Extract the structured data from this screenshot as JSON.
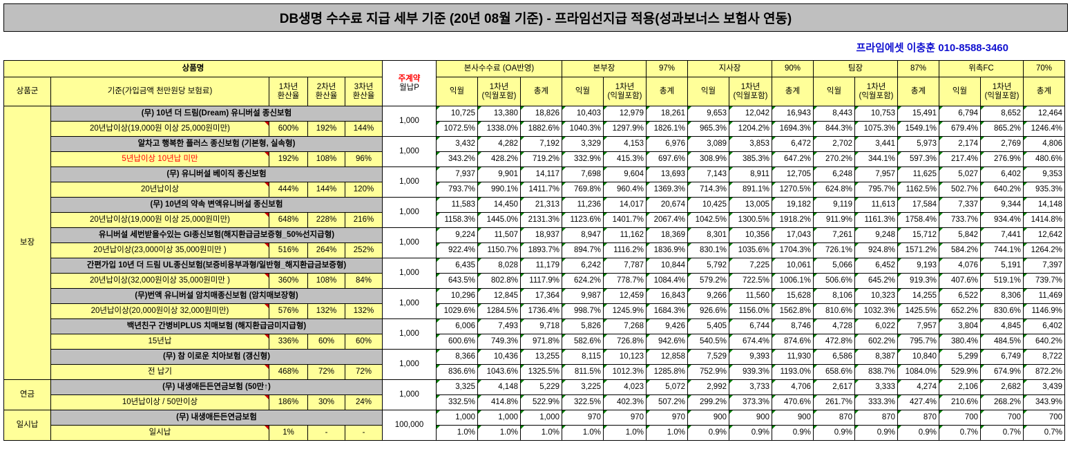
{
  "title": "DB생명 수수료 지급 세부 기준 (20년 08월 기준) - 프라임선지급 적용(성과보너스 보험사 연동)",
  "contact": "프라임에셋 이충훈 010-8588-3460",
  "header": {
    "product_name": "상품명",
    "weekly_contract": "주계약",
    "monthly_p": "월납P",
    "hq_fee": "본사수수료 (OA반영)",
    "headquarters": "본부장",
    "hq_pct": "97%",
    "branch": "지사장",
    "branch_pct": "90%",
    "team": "팀장",
    "team_pct": "87%",
    "fc": "위촉FC",
    "fc_pct": "70%",
    "group": "상품군",
    "criteria": "기준(가입금액 천만원당 보험료)",
    "rate1": "1차년\n환산율",
    "rate2": "2차년\n환산율",
    "rate3": "3차년\n환산율",
    "next_month": "익월",
    "year1": "1차년\n(익월포함)",
    "total": "총계"
  },
  "rows": [
    {
      "group": "보장",
      "name": "(무) 10년 더 드림(Dream) 유니버설 종신보험",
      "criteria": "20년납이상(19,000원 이상 25,000원미만)",
      "criteria_red": false,
      "r1": "600%",
      "r2": "192%",
      "r3": "144%",
      "premium": "1,000",
      "top": [
        "10,725",
        "13,380",
        "18,826",
        "10,403",
        "12,979",
        "18,261",
        "9,653",
        "12,042",
        "16,943",
        "8,443",
        "10,753",
        "15,491",
        "6,794",
        "8,652",
        "12,464"
      ],
      "bottom": [
        "1072.5%",
        "1338.0%",
        "1882.6%",
        "1040.3%",
        "1297.9%",
        "1826.1%",
        "965.3%",
        "1204.2%",
        "1694.3%",
        "844.3%",
        "1075.3%",
        "1549.1%",
        "679.4%",
        "865.2%",
        "1246.4%"
      ]
    },
    {
      "group": "보장",
      "name": "알차고 행복한 플러스 종신보험 (기본형, 실속형)",
      "criteria": "5년납이상 10년납 미만",
      "criteria_red": true,
      "r1": "192%",
      "r2": "108%",
      "r3": "96%",
      "premium": "1,000",
      "top": [
        "3,432",
        "4,282",
        "7,192",
        "3,329",
        "4,153",
        "6,976",
        "3,089",
        "3,853",
        "6,472",
        "2,702",
        "3,441",
        "5,973",
        "2,174",
        "2,769",
        "4,806"
      ],
      "bottom": [
        "343.2%",
        "428.2%",
        "719.2%",
        "332.9%",
        "415.3%",
        "697.6%",
        "308.9%",
        "385.3%",
        "647.2%",
        "270.2%",
        "344.1%",
        "597.3%",
        "217.4%",
        "276.9%",
        "480.6%"
      ]
    },
    {
      "group": "보장",
      "name": "(무) 유니버설 베이직 종신보험",
      "criteria": "20년납이상",
      "criteria_red": false,
      "r1": "444%",
      "r2": "144%",
      "r3": "120%",
      "premium": "1,000",
      "top": [
        "7,937",
        "9,901",
        "14,117",
        "7,698",
        "9,604",
        "13,693",
        "7,143",
        "8,911",
        "12,705",
        "6,248",
        "7,957",
        "11,625",
        "5,027",
        "6,402",
        "9,353"
      ],
      "bottom": [
        "793.7%",
        "990.1%",
        "1411.7%",
        "769.8%",
        "960.4%",
        "1369.3%",
        "714.3%",
        "891.1%",
        "1270.5%",
        "624.8%",
        "795.7%",
        "1162.5%",
        "502.7%",
        "640.2%",
        "935.3%"
      ]
    },
    {
      "group": "보장",
      "name": "(무) 10년의 약속 변액유니버설 종신보험",
      "criteria": "20년납이상(19,000원 이상 25,000원미만)",
      "criteria_red": false,
      "r1": "648%",
      "r2": "228%",
      "r3": "216%",
      "premium": "1,000",
      "top": [
        "11,583",
        "14,450",
        "21,313",
        "11,236",
        "14,017",
        "20,674",
        "10,425",
        "13,005",
        "19,182",
        "9,119",
        "11,613",
        "17,584",
        "7,337",
        "9,344",
        "14,148"
      ],
      "bottom": [
        "1158.3%",
        "1445.0%",
        "2131.3%",
        "1123.6%",
        "1401.7%",
        "2067.4%",
        "1042.5%",
        "1300.5%",
        "1918.2%",
        "911.9%",
        "1161.3%",
        "1758.4%",
        "733.7%",
        "934.4%",
        "1414.8%"
      ]
    },
    {
      "group": "보장",
      "name": "유니버설 세번받을수있는 GI종신보험(해지환급금보증형_50%선지급형)",
      "criteria": "20년납이상(23,000이상 35,000원미만 )",
      "criteria_red": false,
      "r1": "516%",
      "r2": "264%",
      "r3": "252%",
      "premium": "1,000",
      "top": [
        "9,224",
        "11,507",
        "18,937",
        "8,947",
        "11,162",
        "18,369",
        "8,301",
        "10,356",
        "17,043",
        "7,261",
        "9,248",
        "15,712",
        "5,842",
        "7,441",
        "12,642"
      ],
      "bottom": [
        "922.4%",
        "1150.7%",
        "1893.7%",
        "894.7%",
        "1116.2%",
        "1836.9%",
        "830.1%",
        "1035.6%",
        "1704.3%",
        "726.1%",
        "924.8%",
        "1571.2%",
        "584.2%",
        "744.1%",
        "1264.2%"
      ]
    },
    {
      "group": "보장",
      "name": "간편가입 10년 더 드림 UL종신보험(보증비용부과형/일반형_해지환급금보증형)",
      "criteria": "20년납이상(32,000원이상 35,000원미만 )",
      "criteria_red": false,
      "r1": "360%",
      "r2": "108%",
      "r3": "84%",
      "premium": "1,000",
      "top": [
        "6,435",
        "8,028",
        "11,179",
        "6,242",
        "7,787",
        "10,844",
        "5,792",
        "7,225",
        "10,061",
        "5,066",
        "6,452",
        "9,193",
        "4,076",
        "5,191",
        "7,397"
      ],
      "bottom": [
        "643.5%",
        "802.8%",
        "1117.9%",
        "624.2%",
        "778.7%",
        "1084.4%",
        "579.2%",
        "722.5%",
        "1006.1%",
        "506.6%",
        "645.2%",
        "919.3%",
        "407.6%",
        "519.1%",
        "739.7%"
      ]
    },
    {
      "group": "보장",
      "name": "(무)번액 유니버설 암치매종신보험 (암치매보장형)",
      "criteria": "20년납이상(20,000원이상 32,000원미만)",
      "criteria_red": false,
      "r1": "576%",
      "r2": "132%",
      "r3": "132%",
      "premium": "1,000",
      "top": [
        "10,296",
        "12,845",
        "17,364",
        "9,987",
        "12,459",
        "16,843",
        "9,266",
        "11,560",
        "15,628",
        "8,106",
        "10,323",
        "14,255",
        "6,522",
        "8,306",
        "11,469"
      ],
      "bottom": [
        "1029.6%",
        "1284.5%",
        "1736.4%",
        "998.7%",
        "1245.9%",
        "1684.3%",
        "926.6%",
        "1156.0%",
        "1562.8%",
        "810.6%",
        "1032.3%",
        "1425.5%",
        "652.2%",
        "830.6%",
        "1146.9%"
      ]
    },
    {
      "group": "보장",
      "name": "백년친구 간병비PLUS 치매보험 (해지환급금미지급형)",
      "criteria": "15년납",
      "criteria_red": false,
      "r1": "336%",
      "r2": "60%",
      "r3": "60%",
      "premium": "1,000",
      "top": [
        "6,006",
        "7,493",
        "9,718",
        "5,826",
        "7,268",
        "9,426",
        "5,405",
        "6,744",
        "8,746",
        "4,728",
        "6,022",
        "7,957",
        "3,804",
        "4,845",
        "6,402"
      ],
      "bottom": [
        "600.6%",
        "749.3%",
        "971.8%",
        "582.6%",
        "726.8%",
        "942.6%",
        "540.5%",
        "674.4%",
        "874.6%",
        "472.8%",
        "602.2%",
        "795.7%",
        "380.4%",
        "484.5%",
        "640.2%"
      ]
    },
    {
      "group": "보장",
      "name": "(무) 참 이로운 치아보험 (갱신형)",
      "criteria": "전 납기",
      "criteria_red": false,
      "r1": "468%",
      "r2": "72%",
      "r3": "72%",
      "premium": "1,000",
      "top": [
        "8,366",
        "10,436",
        "13,255",
        "8,115",
        "10,123",
        "12,858",
        "7,529",
        "9,393",
        "11,930",
        "6,586",
        "8,387",
        "10,840",
        "5,299",
        "6,749",
        "8,722"
      ],
      "bottom": [
        "836.6%",
        "1043.6%",
        "1325.5%",
        "811.5%",
        "1012.3%",
        "1285.8%",
        "752.9%",
        "939.3%",
        "1193.0%",
        "658.6%",
        "838.7%",
        "1084.0%",
        "529.9%",
        "674.9%",
        "872.2%"
      ]
    },
    {
      "group": "연금",
      "name": "(무) 내생애든든연금보험 (50만↑)",
      "criteria": "10년납이상 / 50만이상",
      "criteria_red": false,
      "r1": "186%",
      "r2": "30%",
      "r3": "24%",
      "premium": "1,000",
      "top": [
        "3,325",
        "4,148",
        "5,229",
        "3,225",
        "4,023",
        "5,072",
        "2,992",
        "3,733",
        "4,706",
        "2,617",
        "3,333",
        "4,274",
        "2,106",
        "2,682",
        "3,439"
      ],
      "bottom": [
        "332.5%",
        "414.8%",
        "522.9%",
        "322.5%",
        "402.3%",
        "507.2%",
        "299.2%",
        "373.3%",
        "470.6%",
        "261.7%",
        "333.3%",
        "427.4%",
        "210.6%",
        "268.2%",
        "343.9%"
      ]
    },
    {
      "group": "일시납",
      "name": "(무) 내생애든든연금보험",
      "criteria": "일시납",
      "criteria_red": false,
      "r1": "1%",
      "r2": "-",
      "r3": "-",
      "premium": "100,000",
      "top": [
        "1,000",
        "1,000",
        "1,000",
        "970",
        "970",
        "970",
        "900",
        "900",
        "900",
        "870",
        "870",
        "870",
        "700",
        "700",
        "700"
      ],
      "bottom": [
        "1.0%",
        "1.0%",
        "1.0%",
        "1.0%",
        "1.0%",
        "1.0%",
        "0.9%",
        "0.9%",
        "0.9%",
        "0.9%",
        "0.9%",
        "0.9%",
        "0.7%",
        "0.7%",
        "0.7%"
      ]
    }
  ],
  "colors": {
    "header_yellow": "#ffff99",
    "name_gray": "#c0c0c0",
    "contact_blue": "#1010d0",
    "highlight_red": "#ff0000"
  }
}
